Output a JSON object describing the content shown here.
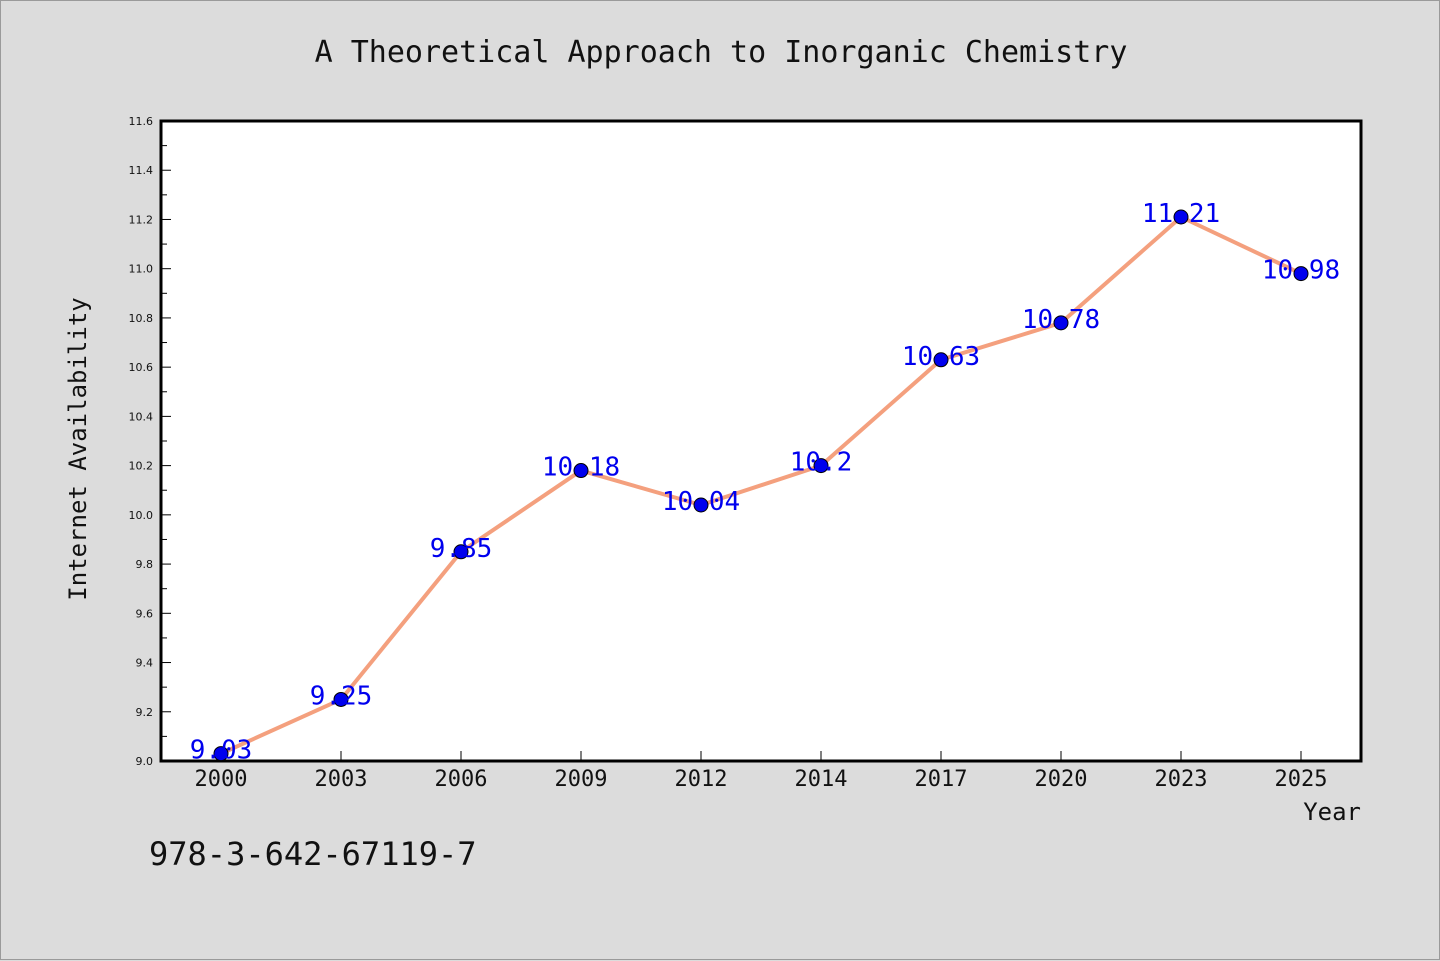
{
  "chart_data": {
    "type": "line",
    "title": "A Theoretical Approach to Inorganic Chemistry",
    "xlabel": "Year",
    "ylabel": "Internet Availability",
    "categories": [
      "2000",
      "2003",
      "2006",
      "2009",
      "2012",
      "2014",
      "2017",
      "2020",
      "2023",
      "2025"
    ],
    "values": [
      9.03,
      9.25,
      9.85,
      10.18,
      10.04,
      10.2,
      10.63,
      10.78,
      11.21,
      10.98
    ],
    "value_labels": [
      "9.03",
      "9.25",
      "9.85",
      "10.18",
      "10.04",
      "10.2",
      "10.63",
      "10.78",
      "11.21",
      "10.98"
    ],
    "ylim": [
      9.0,
      11.6
    ],
    "y_ticks": [
      "9.0",
      "9.2",
      "9.4",
      "9.6",
      "9.8",
      "10.0",
      "10.2",
      "10.4",
      "10.6",
      "10.8",
      "11.0",
      "11.2",
      "11.4",
      "11.6"
    ],
    "grid": false,
    "legend": "none",
    "colors": {
      "line": "#f4a07e",
      "marker": "#0000ee",
      "label": "#0000ee",
      "background": "#dcdcdc",
      "plot_background": "#ffffff"
    }
  },
  "footer": {
    "isbn": "978-3-642-67119-7"
  }
}
